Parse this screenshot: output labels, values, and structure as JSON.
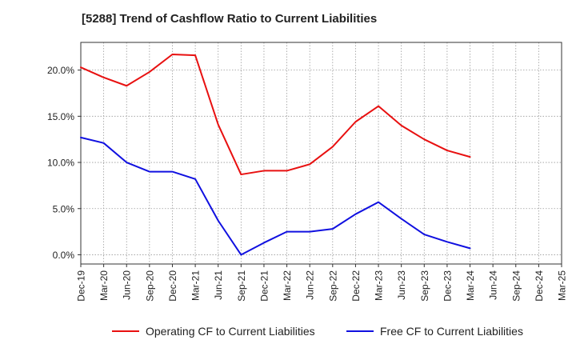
{
  "chart_data": {
    "type": "line",
    "title": "[5288]  Trend of Cashflow Ratio to Current Liabilities",
    "xlabel": "",
    "ylabel": "",
    "x": [
      "Dec-19",
      "Mar-20",
      "Jun-20",
      "Sep-20",
      "Dec-20",
      "Mar-21",
      "Jun-21",
      "Sep-21",
      "Dec-21",
      "Mar-22",
      "Jun-22",
      "Sep-22",
      "Dec-22",
      "Mar-23",
      "Jun-23",
      "Sep-23",
      "Dec-23",
      "Mar-24",
      "Jun-24",
      "Sep-24",
      "Dec-24",
      "Mar-25"
    ],
    "ylim": [
      -1.0,
      23.0
    ],
    "yticks": [
      0,
      5,
      10,
      15,
      20
    ],
    "ytick_labels": [
      "0.0%",
      "5.0%",
      "10.0%",
      "15.0%",
      "20.0%"
    ],
    "grid": true,
    "legend_position": "bottom",
    "series": [
      {
        "name": "Operating CF to Current Liabilities",
        "color": "#e81010",
        "values": [
          20.3,
          19.2,
          18.3,
          19.8,
          21.7,
          21.6,
          14.1,
          8.7,
          9.1,
          9.1,
          9.8,
          11.7,
          14.4,
          16.1,
          14.0,
          12.5,
          11.3,
          10.6,
          null,
          null,
          null,
          null
        ]
      },
      {
        "name": "Free CF to Current Liabilities",
        "color": "#1010e0",
        "values": [
          12.7,
          12.1,
          10.0,
          9.0,
          9.0,
          8.2,
          3.7,
          0.0,
          1.3,
          2.5,
          2.5,
          2.8,
          4.4,
          5.7,
          3.9,
          2.2,
          1.4,
          0.7,
          null,
          null,
          null,
          null
        ]
      }
    ]
  }
}
